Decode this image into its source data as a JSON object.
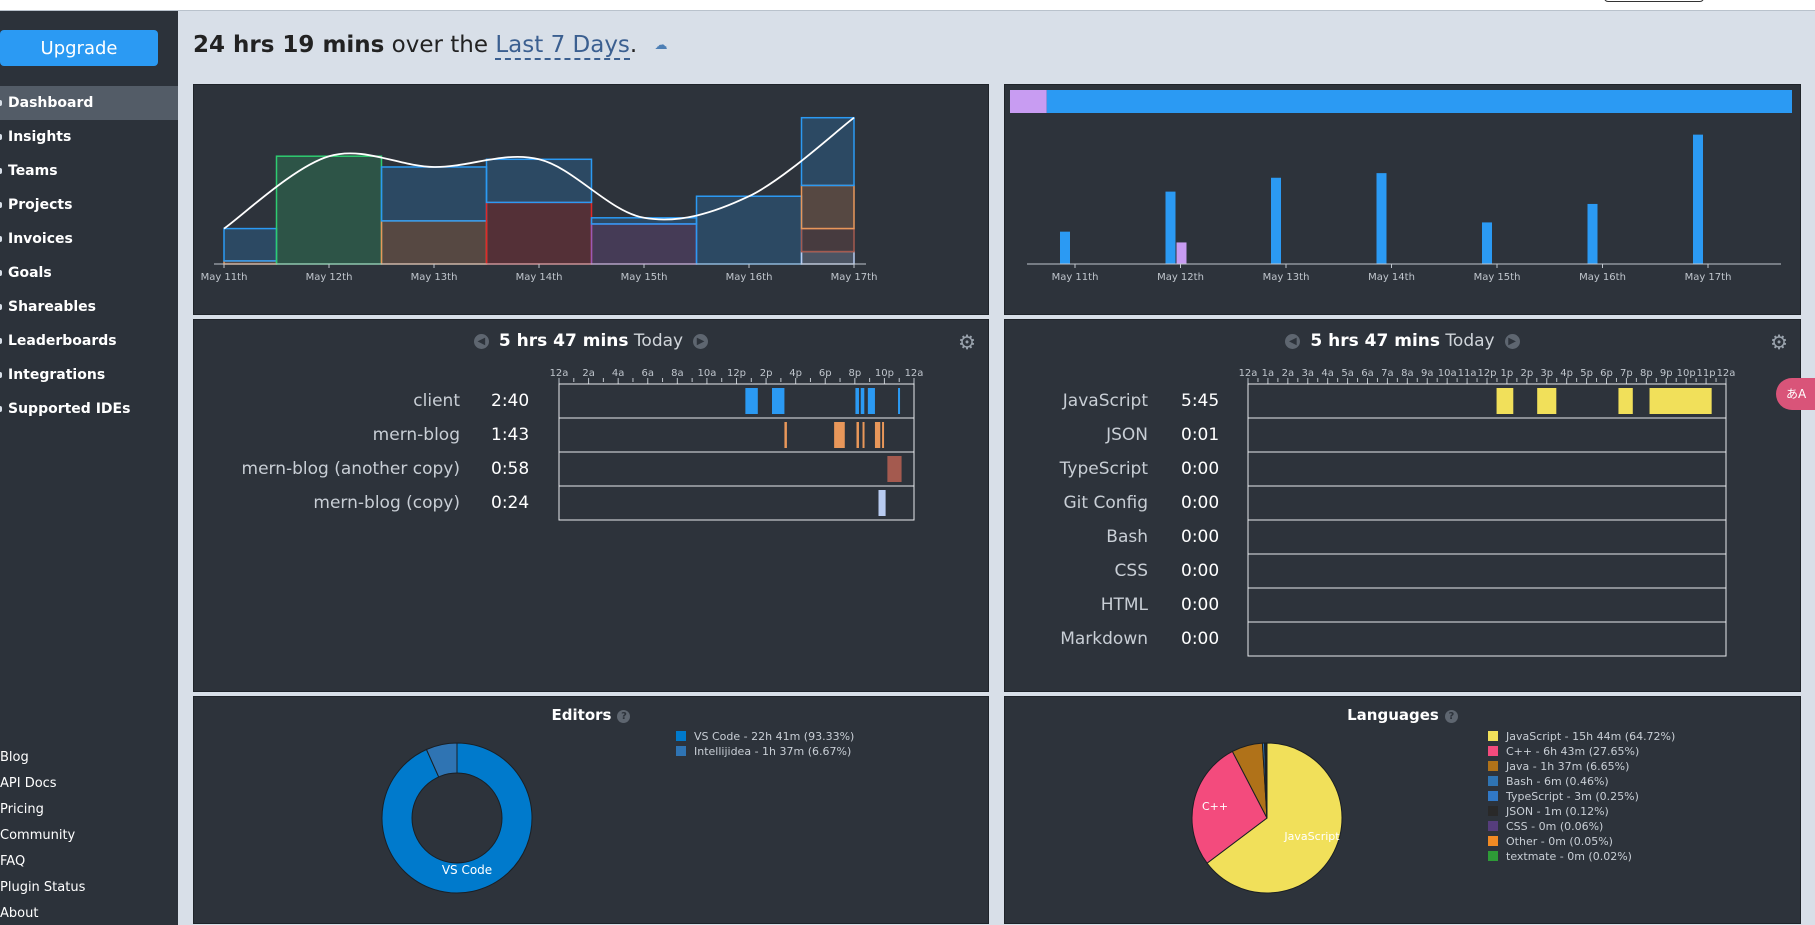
{
  "sidebar": {
    "upgrade_label": "Upgrade",
    "nav": [
      {
        "label": "Dashboard",
        "active": true
      },
      {
        "label": "Insights",
        "active": false
      },
      {
        "label": "Teams",
        "active": false
      },
      {
        "label": "Projects",
        "active": false
      },
      {
        "label": "Invoices",
        "active": false
      },
      {
        "label": "Goals",
        "active": false
      },
      {
        "label": "Shareables",
        "active": false
      },
      {
        "label": "Leaderboards",
        "active": false
      },
      {
        "label": "Integrations",
        "active": false
      },
      {
        "label": "Supported IDEs",
        "active": false
      }
    ],
    "footer": [
      "Blog",
      "API Docs",
      "Pricing",
      "Community",
      "FAQ",
      "Plugin Status",
      "About"
    ]
  },
  "header": {
    "total": "24 hrs 19 mins",
    "over_the": "over the",
    "range_link": "Last 7 Days",
    "period": ".",
    "cloud_icon": "cloud-download-icon"
  },
  "day_labels": [
    "May 11th",
    "May 12th",
    "May 13th",
    "May 14th",
    "May 15th",
    "May 16th",
    "May 17th"
  ],
  "projects_today": {
    "total": "5 hrs 47 mins",
    "today": "Today",
    "hour_ticks": [
      "12a",
      "2a",
      "4a",
      "6a",
      "8a",
      "10a",
      "12p",
      "2p",
      "4p",
      "6p",
      "8p",
      "10p",
      "12a"
    ],
    "rows": [
      {
        "label": "client",
        "time": "2:40",
        "color": "#2b9af3",
        "segments": [
          [
            0.525,
            0.56
          ],
          [
            0.6,
            0.635
          ],
          [
            0.835,
            0.845
          ],
          [
            0.85,
            0.86
          ],
          [
            0.87,
            0.89
          ],
          [
            0.955,
            0.96
          ]
        ]
      },
      {
        "label": "mern-blog",
        "time": "1:43",
        "color": "#e8975a",
        "segments": [
          [
            0.635,
            0.642
          ],
          [
            0.775,
            0.805
          ],
          [
            0.838,
            0.845
          ],
          [
            0.855,
            0.86
          ],
          [
            0.89,
            0.905
          ],
          [
            0.91,
            0.915
          ]
        ]
      },
      {
        "label": "mern-blog (another copy)",
        "time": "0:58",
        "color": "#a45a4f",
        "segments": [
          [
            0.925,
            0.965
          ]
        ]
      },
      {
        "label": "mern-blog (copy)",
        "time": "0:24",
        "color": "#b8cbf0",
        "segments": [
          [
            0.9,
            0.92
          ]
        ]
      }
    ]
  },
  "languages_today": {
    "total": "5 hrs 47 mins",
    "today": "Today",
    "hour_ticks": [
      "12a",
      "1a",
      "2a",
      "3a",
      "4a",
      "5a",
      "6a",
      "7a",
      "8a",
      "9a",
      "10a",
      "11a",
      "12p",
      "1p",
      "2p",
      "3p",
      "4p",
      "5p",
      "6p",
      "7p",
      "8p",
      "9p",
      "10p",
      "11p",
      "12a"
    ],
    "rows": [
      {
        "label": "JavaScript",
        "time": "5:45",
        "color": "#f1e05a",
        "segments": [
          [
            0.52,
            0.555
          ],
          [
            0.605,
            0.645
          ],
          [
            0.775,
            0.805
          ],
          [
            0.84,
            0.97
          ]
        ]
      },
      {
        "label": "JSON",
        "time": "0:01",
        "color": "#f1e05a",
        "segments": []
      },
      {
        "label": "TypeScript",
        "time": "0:00",
        "color": "#2b7489",
        "segments": []
      },
      {
        "label": "Git Config",
        "time": "0:00",
        "color": "#f44d27",
        "segments": []
      },
      {
        "label": "Bash",
        "time": "0:00",
        "color": "#89e051",
        "segments": []
      },
      {
        "label": "CSS",
        "time": "0:00",
        "color": "#563d7c",
        "segments": []
      },
      {
        "label": "HTML",
        "time": "0:00",
        "color": "#e34c26",
        "segments": []
      },
      {
        "label": "Markdown",
        "time": "0:00",
        "color": "#083fa1",
        "segments": []
      }
    ]
  },
  "editors": {
    "title": "Editors",
    "legend": [
      {
        "text": "VS Code - 22h 41m (93.33%)",
        "color": "#007acc"
      },
      {
        "text": "Intellijidea - 1h 37m (6.67%)",
        "color": "#2f74b3"
      }
    ],
    "slice_label": "VS Code"
  },
  "languages": {
    "title": "Languages",
    "legend": [
      {
        "text": "JavaScript - 15h 44m (64.72%)",
        "color": "#f1e05a"
      },
      {
        "text": "C++ - 6h 43m (27.65%)",
        "color": "#f34b7d"
      },
      {
        "text": "Java - 1h 37m (6.65%)",
        "color": "#b07219"
      },
      {
        "text": "Bash - 6m (0.46%)",
        "color": "#2f74b3"
      },
      {
        "text": "TypeScript - 3m (0.25%)",
        "color": "#3178c6"
      },
      {
        "text": "JSON - 1m (0.12%)",
        "color": "#292929"
      },
      {
        "text": "CSS - 0m (0.06%)",
        "color": "#563d7c"
      },
      {
        "text": "Other - 0m (0.05%)",
        "color": "#f08a24"
      },
      {
        "text": "textmate - 0m (0.02%)",
        "color": "#2e9b37"
      }
    ],
    "label_js": "JavaScript",
    "label_cpp": "C++"
  },
  "chart_data": [
    {
      "type": "area",
      "x": [
        "May 11th",
        "May 12th",
        "May 13th",
        "May 14th",
        "May 15th",
        "May 16th",
        "May 17th"
      ],
      "total_hours": [
        2.3,
        7.0,
        6.3,
        6.8,
        3.0,
        4.4,
        9.5
      ],
      "stacked_segments_hours": [
        [
          {
            "h": 0.2,
            "color": "#e8975a"
          },
          {
            "h": 2.1,
            "color": "#2b9af3"
          }
        ],
        [
          {
            "h": 7.0,
            "color": "#2ecc71"
          }
        ],
        [
          {
            "h": 2.8,
            "color": "#e8975a"
          },
          {
            "h": 3.5,
            "color": "#2b9af3"
          }
        ],
        [
          {
            "h": 4.0,
            "color": "#e02828"
          },
          {
            "h": 2.8,
            "color": "#2b9af3"
          }
        ],
        [
          {
            "h": 2.6,
            "color": "#9b59b6"
          },
          {
            "h": 0.4,
            "color": "#2b9af3"
          }
        ],
        [
          {
            "h": 4.4,
            "color": "#2b9af3"
          }
        ],
        [
          {
            "h": 0.8,
            "color": "#b8cbf0"
          },
          {
            "h": 1.5,
            "color": "#a45a4f"
          },
          {
            "h": 2.8,
            "color": "#e8975a"
          },
          {
            "h": 4.4,
            "color": "#2b9af3"
          }
        ]
      ],
      "ylim": [
        0,
        10
      ]
    },
    {
      "type": "bar",
      "categories": [
        "May 11th",
        "May 12th",
        "May 13th",
        "May 14th",
        "May 15th",
        "May 16th",
        "May 17th"
      ],
      "series": [
        {
          "color": "#2b9af3",
          "values": [
            2.1,
            4.7,
            5.6,
            5.9,
            2.7,
            3.9,
            8.4
          ]
        },
        {
          "color": "#c89cf2",
          "values": [
            0.0,
            1.4,
            0.0,
            0.0,
            0.0,
            0.0,
            0.0
          ]
        }
      ],
      "ylim": [
        0,
        10
      ],
      "top_ratio_bar": [
        {
          "value": 0.047,
          "color": "#c89cf2"
        },
        {
          "value": 0.953,
          "color": "#2b9af3"
        }
      ]
    }
  ]
}
